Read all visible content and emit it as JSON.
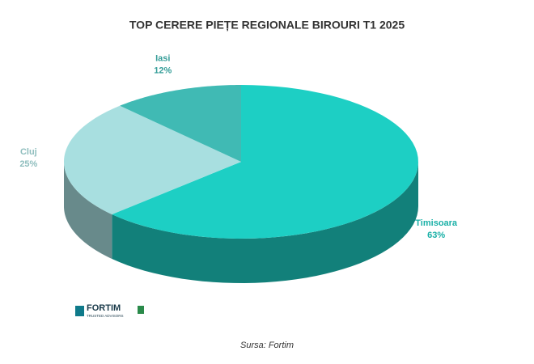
{
  "chart_data": {
    "type": "pie",
    "title": "TOP CERERE PIEȚE REGIONALE BIROURI T1 2025",
    "categories": [
      "Timisoara",
      "Cluj",
      "Iasi"
    ],
    "values": [
      63,
      25,
      12
    ],
    "value_labels": [
      "63%",
      "25%",
      "12%"
    ],
    "colors": [
      "#1dcfc4",
      "#a8dfe0",
      "#40bab4"
    ]
  },
  "logo": {
    "name": "FORTIM",
    "tagline": "TRUSTED ADVISORS"
  },
  "footer": {
    "source": "Sursa: Fortim"
  }
}
